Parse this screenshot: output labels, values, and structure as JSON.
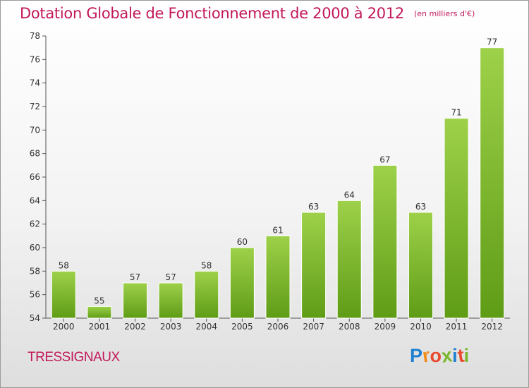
{
  "title": "Dotation Globale de Fonctionnement de 2000 à 2012",
  "subtitle": "(en milliers d'€)",
  "commune": "TRESSIGNAUX",
  "logo": {
    "letters": [
      "P",
      "r",
      "o",
      "x",
      "i",
      "t",
      "i"
    ],
    "colors": [
      "#1f7fd1",
      "#f28c1a",
      "#e84a2f",
      "#7ab82e",
      "#1f7fd1",
      "#e84a2f",
      "#7ab82e"
    ]
  },
  "chart_data": {
    "type": "bar",
    "categories": [
      "2000",
      "2001",
      "2002",
      "2003",
      "2004",
      "2005",
      "2006",
      "2007",
      "2008",
      "2009",
      "2010",
      "2011",
      "2012"
    ],
    "values": [
      58,
      55,
      57,
      57,
      58,
      60,
      61,
      63,
      64,
      67,
      63,
      71,
      77
    ],
    "ylim": [
      54,
      78
    ],
    "yticks": [
      54,
      56,
      58,
      60,
      62,
      64,
      66,
      68,
      70,
      72,
      74,
      76,
      78
    ],
    "grid": false,
    "data_labels": true,
    "bar_color_top": "#9ed14a",
    "bar_color_bottom": "#5f9c16"
  }
}
